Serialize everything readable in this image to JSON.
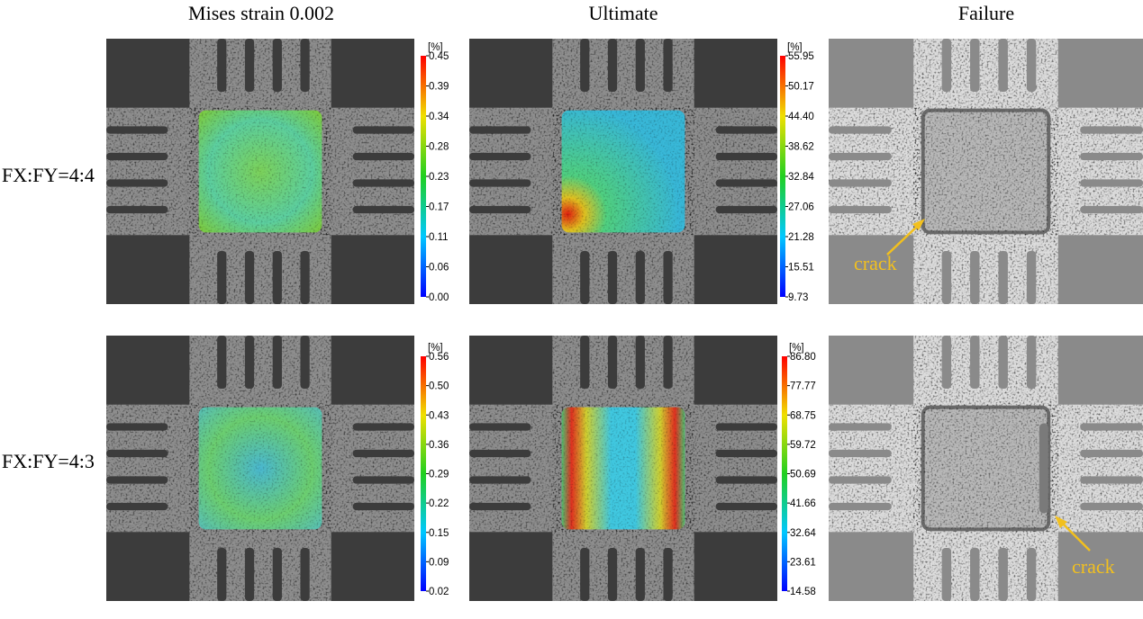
{
  "columns": [
    "Mises strain 0.002",
    "Ultimate",
    "Failure"
  ],
  "rows": [
    "FX:FY=4:4",
    "FX:FY=4:3"
  ],
  "colorbars": [
    {
      "unit": "[%]",
      "ticks": [
        "0.45",
        "0.39",
        "0.34",
        "0.28",
        "0.23",
        "0.17",
        "0.11",
        "0.06",
        "0.00"
      ]
    },
    {
      "unit": "[%]",
      "ticks": [
        "55.95",
        "50.17",
        "44.40",
        "38.62",
        "32.84",
        "27.06",
        "21.28",
        "15.51",
        "9.73"
      ]
    },
    {
      "unit": "[%]",
      "ticks": [
        "0.56",
        "0.50",
        "0.43",
        "0.36",
        "0.29",
        "0.22",
        "0.15",
        "0.09",
        "0.02"
      ]
    },
    {
      "unit": "[%]",
      "ticks": [
        "86.80",
        "77.77",
        "68.75",
        "59.72",
        "50.69",
        "41.66",
        "32.64",
        "23.61",
        "14.58"
      ]
    }
  ],
  "annotations": [
    "crack",
    "crack"
  ]
}
